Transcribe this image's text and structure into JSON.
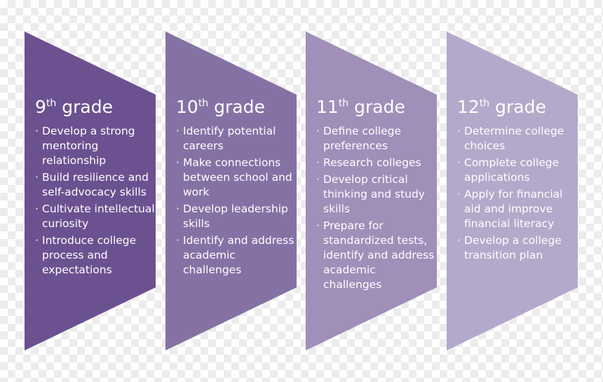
{
  "steps": [
    {
      "number": "9",
      "suffix": "th",
      "label": "grade",
      "items": [
        "Develop a strong mentoring relationship",
        "Build resilience and self-advocacy skills",
        "Cultivate intellectual curiosity",
        "Introduce college process and expectations"
      ]
    },
    {
      "number": "10",
      "suffix": "th",
      "label": "grade",
      "items": [
        "Identify potential careers",
        "Make connections between school and work",
        "Develop leadership skills",
        "Identify and address academic challenges"
      ]
    },
    {
      "number": "11",
      "suffix": "th",
      "label": "grade",
      "items": [
        "Define college preferences",
        "Research colleges",
        "Develop critical thinking and study skills",
        "Prepare for standardized tests, identify and address academic challenges"
      ]
    },
    {
      "number": "12",
      "suffix": "th",
      "label": "grade",
      "items": [
        "Determine college choices",
        "Complete college applications",
        "Apply for financial aid and improve financial literacy",
        "Develop a college transition plan"
      ]
    }
  ]
}
